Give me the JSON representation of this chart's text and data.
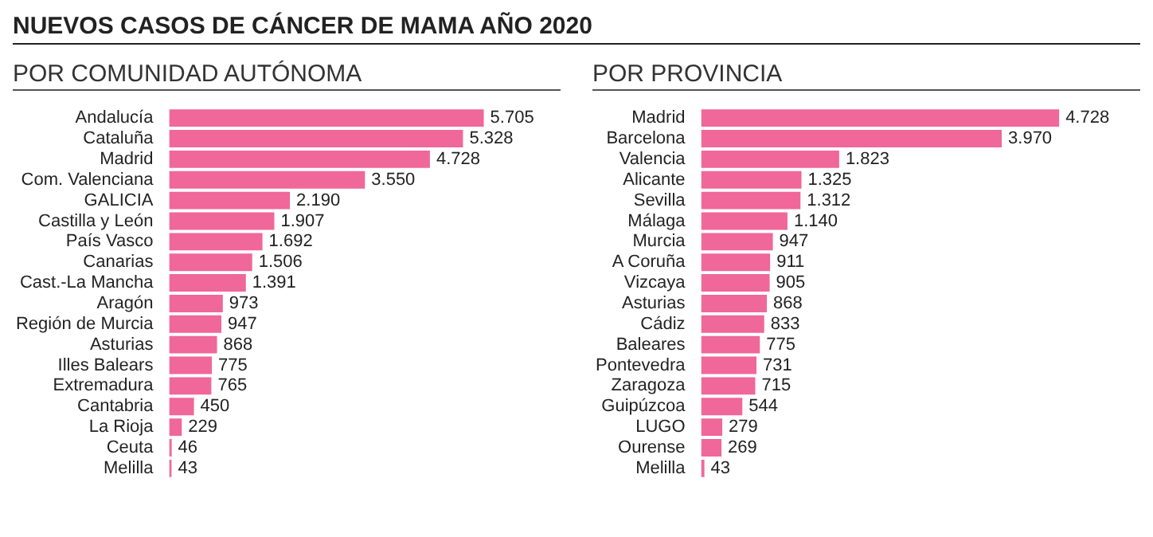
{
  "chart_data": [
    {
      "type": "bar",
      "orientation": "horizontal",
      "title": "NUEVOS CASOS DE CÁNCER DE MAMA AÑO 2020",
      "subtitle": "POR COMUNIDAD AUTÓNOMA",
      "categories": [
        "Andalucía",
        "Cataluña",
        "Madrid",
        "Com. Valenciana",
        "GALICIA",
        "Castilla y León",
        "País Vasco",
        "Canarias",
        "Cast.-La Mancha",
        "Aragón",
        "Región de Murcia",
        "Asturias",
        "Illes Balears",
        "Extremadura",
        "Cantabria",
        "La Rioja",
        "Ceuta",
        "Melilla"
      ],
      "values": [
        5705,
        5328,
        4728,
        3550,
        2190,
        1907,
        1692,
        1506,
        1391,
        973,
        947,
        868,
        775,
        765,
        450,
        229,
        46,
        43
      ],
      "value_labels": [
        "5.705",
        "5.328",
        "4.728",
        "3.550",
        "2.190",
        "1.907",
        "1.692",
        "1.506",
        "1.391",
        "973",
        "947",
        "868",
        "775",
        "765",
        "450",
        "229",
        "46",
        "43"
      ],
      "color": "#f0679a",
      "tick_labels": "y",
      "legend": false
    },
    {
      "type": "bar",
      "orientation": "horizontal",
      "title": "POR PROVINCIA",
      "categories": [
        "Madrid",
        "Barcelona",
        "Valencia",
        "Alicante",
        "Sevilla",
        "Málaga",
        "Murcia",
        "A Coruña",
        "Vizcaya",
        "Asturias",
        "Cádiz",
        "Baleares",
        "Pontevedra",
        "Zaragoza",
        "Guipúzcoa",
        "LUGO",
        "Ourense",
        "Melilla"
      ],
      "values": [
        4728,
        3970,
        1823,
        1325,
        1312,
        1140,
        947,
        911,
        905,
        868,
        833,
        775,
        731,
        715,
        544,
        279,
        269,
        43
      ],
      "value_labels": [
        "4.728",
        "3.970",
        "1.823",
        "1.325",
        "1.312",
        "1.140",
        "947",
        "911",
        "905",
        "868",
        "833",
        "775",
        "731",
        "715",
        "544",
        "279",
        "269",
        "43"
      ],
      "color": "#f0679a",
      "tick_labels": "y",
      "legend": false
    }
  ]
}
